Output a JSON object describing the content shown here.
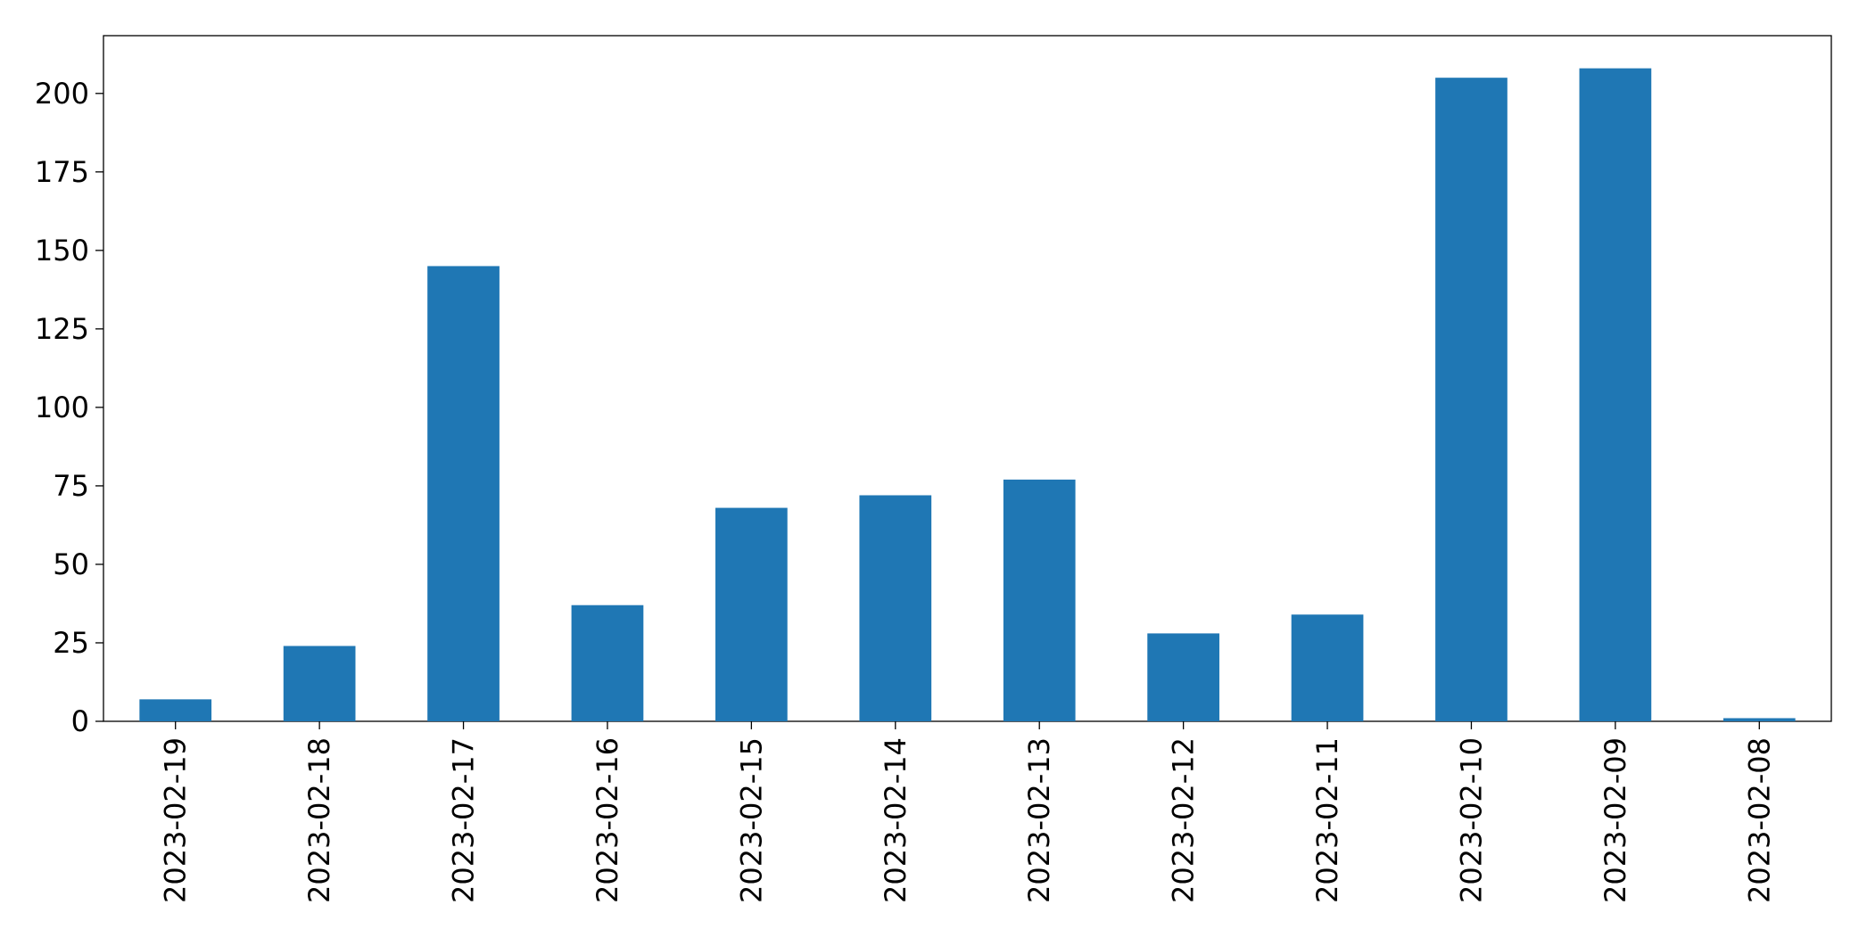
{
  "chart_data": {
    "type": "bar",
    "categories": [
      "2023-02-19",
      "2023-02-18",
      "2023-02-17",
      "2023-02-16",
      "2023-02-15",
      "2023-02-14",
      "2023-02-13",
      "2023-02-12",
      "2023-02-11",
      "2023-02-10",
      "2023-02-09",
      "2023-02-08"
    ],
    "values": [
      7,
      24,
      145,
      37,
      68,
      72,
      77,
      28,
      34,
      205,
      208,
      1
    ],
    "color": "#1f77b4",
    "ylim": [
      0,
      218.4
    ],
    "yticks": [
      0,
      25,
      50,
      75,
      100,
      125,
      150,
      175,
      200
    ],
    "grid": false
  }
}
